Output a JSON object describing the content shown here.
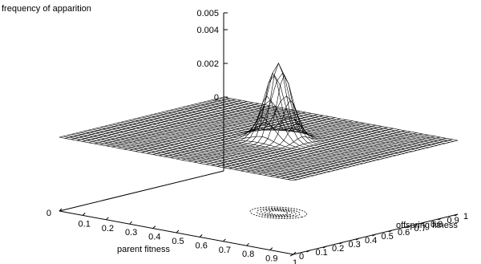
{
  "chart_data": {
    "type": "surface",
    "title": "frequency of apparition",
    "xlabel": "parent fitness",
    "ylabel": "offspring fitness",
    "zlabel": "frequency of apparition",
    "xlim": [
      0,
      1
    ],
    "ylim": [
      0,
      1
    ],
    "zlim": [
      0,
      0.005
    ],
    "x_ticks": [
      "0",
      "0.1",
      "0.2",
      "0.3",
      "0.4",
      "0.5",
      "0.6",
      "0.7",
      "0.8",
      "0.9",
      "1"
    ],
    "y_ticks": [
      "0",
      "0.1",
      "0.2",
      "0.3",
      "0.4",
      "0.5",
      "0.6",
      "0.7",
      "0.8",
      "0.9",
      "1"
    ],
    "z_ticks": [
      "0",
      "0.002",
      "0.004",
      "0.005"
    ],
    "z_tick_values": [
      0,
      0.002,
      0.004,
      0.005
    ],
    "grid_resolution": 40,
    "peak": {
      "x": 0.55,
      "y": 0.55,
      "height": 0.0045,
      "sigma": 0.045
    },
    "contour_levels": [
      0.0004,
      0.0011,
      0.0018,
      0.0026,
      0.0034
    ],
    "contours_on_base": true
  }
}
